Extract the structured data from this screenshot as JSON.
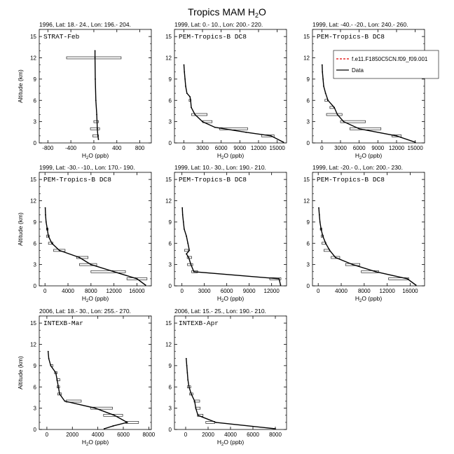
{
  "figure": {
    "title_main": "Tropics MAM H",
    "title_sub": "2",
    "title_end": "O"
  },
  "chart_data": [
    {
      "type": "line",
      "header": "1996, Lat: 18.- 24., Lon: 196.- 204.",
      "label": "STRAT-Feb",
      "xlabel": "H2O (ppb)",
      "ylabel": "Altitude (km)",
      "xlim": [
        -950,
        1000
      ],
      "ylim": [
        0,
        16
      ],
      "xticks": [
        "-800",
        "-400",
        "0",
        "400",
        "800"
      ],
      "xtick_values": [
        -800,
        -400,
        0,
        400,
        800
      ],
      "yticks": [
        "0",
        "3",
        "6",
        "9",
        "12",
        "15"
      ],
      "ytick_values": [
        0,
        3,
        6,
        9,
        12,
        15
      ],
      "data": [
        [
          20,
          13
        ],
        [
          20,
          12
        ],
        [
          25,
          9
        ],
        [
          35,
          6
        ],
        [
          50,
          4
        ],
        [
          60,
          2
        ],
        [
          70,
          1
        ],
        [
          80,
          0.5
        ]
      ],
      "boxes": [
        [
          0,
          12,
          950
        ],
        [
          20,
          2,
          160
        ],
        [
          30,
          1,
          100
        ],
        [
          40,
          3,
          80
        ]
      ]
    },
    {
      "type": "line",
      "header": "1999, Lat: 0.- 10., Lon: 200.- 220.",
      "label": "PEM-Tropics-B DC8",
      "xlabel": "H2O (ppb)",
      "ylabel": "Altitude (km)",
      "xlim": [
        -1500,
        16500
      ],
      "ylim": [
        0,
        16
      ],
      "xticks": [
        "0",
        "3000",
        "6000",
        "9000",
        "12000",
        "15000"
      ],
      "xtick_values": [
        0,
        3000,
        6000,
        9000,
        12000,
        15000
      ],
      "yticks": [
        "0",
        "3",
        "6",
        "9",
        "12",
        "15"
      ],
      "ytick_values": [
        0,
        3,
        6,
        9,
        12,
        15
      ],
      "data": [
        [
          20,
          11
        ],
        [
          100,
          10
        ],
        [
          200,
          9
        ],
        [
          300,
          8
        ],
        [
          500,
          7
        ],
        [
          1000,
          6.5
        ],
        [
          1100,
          6
        ],
        [
          1200,
          5
        ],
        [
          1800,
          4
        ],
        [
          3000,
          3
        ],
        [
          5000,
          2.2
        ],
        [
          10000,
          1.5
        ],
        [
          14000,
          1
        ],
        [
          16000,
          0.1
        ]
      ],
      "boxes": [
        [
          2500,
          4,
          2500
        ],
        [
          3800,
          3,
          1500
        ],
        [
          8000,
          2,
          4500
        ],
        [
          13500,
          1,
          2000
        ],
        [
          1000,
          6,
          300
        ]
      ]
    },
    {
      "type": "line",
      "header": "1999, Lat: -40.- -20., Lon: 240.- 260.",
      "label": "PEM-Tropics-B DC8",
      "xlabel": "H2O (ppb)",
      "ylabel": "Altitude (km)",
      "xlim": [
        -1500,
        16500
      ],
      "ylim": [
        0,
        16
      ],
      "xticks": [
        "0",
        "3000",
        "6000",
        "9000",
        "12000",
        "15000"
      ],
      "xtick_values": [
        0,
        3000,
        6000,
        9000,
        12000,
        15000
      ],
      "yticks": [
        "0",
        "3",
        "6",
        "9",
        "12",
        "15"
      ],
      "ytick_values": [
        0,
        3,
        6,
        9,
        12,
        15
      ],
      "data": [
        [
          50,
          11
        ],
        [
          100,
          10
        ],
        [
          200,
          9
        ],
        [
          300,
          8
        ],
        [
          600,
          7
        ],
        [
          1000,
          6
        ],
        [
          2000,
          5
        ],
        [
          2500,
          4
        ],
        [
          3500,
          3
        ],
        [
          6000,
          2
        ],
        [
          12000,
          1
        ],
        [
          15000,
          0.1
        ]
      ],
      "boxes": [
        [
          2000,
          4,
          2500
        ],
        [
          5000,
          3,
          4000
        ],
        [
          7000,
          2,
          5000
        ],
        [
          12000,
          1,
          1500
        ],
        [
          700,
          6,
          400
        ],
        [
          1600,
          5,
          600
        ]
      ]
    },
    {
      "type": "line",
      "header": "1999, Lat: -30.- -10., Lon: 170.- 190.",
      "label": "PEM-Tropics-B DC8",
      "xlabel": "H2O (ppb)",
      "ylabel": "Altitude (km)",
      "xlim": [
        -1000,
        18500
      ],
      "ylim": [
        0,
        16
      ],
      "xticks": [
        "0",
        "4000",
        "8000",
        "12000",
        "16000"
      ],
      "xtick_values": [
        0,
        4000,
        8000,
        12000,
        16000
      ],
      "yticks": [
        "0",
        "3",
        "6",
        "9",
        "12",
        "15"
      ],
      "ytick_values": [
        0,
        3,
        6,
        9,
        12,
        15
      ],
      "data": [
        [
          50,
          11
        ],
        [
          100,
          10
        ],
        [
          200,
          9
        ],
        [
          400,
          8
        ],
        [
          600,
          7
        ],
        [
          1200,
          6
        ],
        [
          2500,
          5
        ],
        [
          6000,
          4
        ],
        [
          8000,
          3
        ],
        [
          12000,
          2
        ],
        [
          16000,
          1
        ],
        [
          17500,
          0.1
        ]
      ],
      "boxes": [
        [
          2500,
          5,
          2000
        ],
        [
          6500,
          4,
          2000
        ],
        [
          7500,
          3,
          3000
        ],
        [
          11000,
          2,
          6000
        ],
        [
          16000,
          1,
          3500
        ],
        [
          1000,
          6,
          800
        ],
        [
          500,
          7,
          500
        ],
        [
          400,
          8,
          300
        ]
      ]
    },
    {
      "type": "line",
      "header": "1999, Lat: 10.- 30., Lon: 190.- 210.",
      "label": "PEM-Tropics-B DC8",
      "xlabel": "H2O (ppb)",
      "ylabel": "Altitude (km)",
      "xlim": [
        -1000,
        14000
      ],
      "ylim": [
        0,
        16
      ],
      "xticks": [
        "0",
        "3000",
        "6000",
        "9000",
        "12000"
      ],
      "xtick_values": [
        0,
        3000,
        6000,
        9000,
        12000
      ],
      "yticks": [
        "0",
        "3",
        "6",
        "9",
        "12",
        "15"
      ],
      "ytick_values": [
        0,
        3,
        6,
        9,
        12,
        15
      ],
      "data": [
        [
          50,
          11
        ],
        [
          100,
          10
        ],
        [
          200,
          9
        ],
        [
          300,
          8
        ],
        [
          600,
          7
        ],
        [
          800,
          6
        ],
        [
          1000,
          5
        ],
        [
          600,
          4.5
        ],
        [
          900,
          4
        ],
        [
          1200,
          3
        ],
        [
          1600,
          2
        ],
        [
          13000,
          1
        ],
        [
          13200,
          0.1
        ]
      ],
      "boxes": [
        [
          12500,
          1,
          1500
        ],
        [
          1700,
          2,
          800
        ],
        [
          1100,
          3,
          700
        ],
        [
          1000,
          4,
          600
        ],
        [
          600,
          5,
          500
        ]
      ]
    },
    {
      "type": "line",
      "header": "1999, Lat: -20.- 0., Lon: 200.- 230.",
      "label": "PEM-Tropics-B DC8",
      "xlabel": "H2O (ppb)",
      "ylabel": "Altitude (km)",
      "xlim": [
        -1000,
        18500
      ],
      "ylim": [
        0,
        16
      ],
      "xticks": [
        "0",
        "4000",
        "8000",
        "12000",
        "16000"
      ],
      "xtick_values": [
        0,
        4000,
        8000,
        12000,
        16000
      ],
      "yticks": [
        "0",
        "3",
        "6",
        "9",
        "12",
        "15"
      ],
      "ytick_values": [
        0,
        3,
        6,
        9,
        12,
        15
      ],
      "data": [
        [
          100,
          11
        ],
        [
          200,
          10
        ],
        [
          300,
          9
        ],
        [
          500,
          8
        ],
        [
          800,
          7
        ],
        [
          1300,
          6
        ],
        [
          2000,
          5
        ],
        [
          3000,
          4
        ],
        [
          6000,
          3
        ],
        [
          10000,
          2
        ],
        [
          15500,
          1
        ],
        [
          17000,
          0.1
        ]
      ],
      "boxes": [
        [
          14000,
          1,
          3500
        ],
        [
          9000,
          2,
          3000
        ],
        [
          6000,
          3,
          2500
        ],
        [
          3000,
          4,
          1500
        ],
        [
          1500,
          5,
          1000
        ],
        [
          1000,
          6,
          700
        ],
        [
          700,
          7,
          400
        ],
        [
          500,
          8,
          300
        ]
      ]
    },
    {
      "type": "line",
      "header": "2006, Lat: 18.- 30., Lon: 255.- 270.",
      "label": "INTEXB-Mar",
      "xlabel": "H2O (ppb)",
      "ylabel": "Altitude (km)",
      "xlim": [
        -600,
        8200
      ],
      "ylim": [
        0,
        16
      ],
      "xticks": [
        "0",
        "2000",
        "4000",
        "6000",
        "8000"
      ],
      "xtick_values": [
        0,
        2000,
        4000,
        6000,
        8000
      ],
      "yticks": [
        "0",
        "3",
        "6",
        "9",
        "12",
        "15"
      ],
      "ytick_values": [
        0,
        3,
        6,
        9,
        12,
        15
      ],
      "data": [
        [
          100,
          11
        ],
        [
          150,
          10
        ],
        [
          300,
          9
        ],
        [
          700,
          8
        ],
        [
          800,
          7
        ],
        [
          900,
          6
        ],
        [
          1000,
          5
        ],
        [
          1400,
          4
        ],
        [
          3800,
          3
        ],
        [
          5300,
          2
        ],
        [
          6300,
          1
        ],
        [
          5200,
          0.5
        ],
        [
          4500,
          0.1
        ]
      ],
      "boxes": [
        [
          6700,
          1,
          1000
        ],
        [
          5200,
          2,
          1500
        ],
        [
          4300,
          3,
          1700
        ],
        [
          2100,
          4,
          1200
        ],
        [
          1000,
          5,
          300
        ],
        [
          900,
          6,
          200
        ],
        [
          900,
          7,
          250
        ],
        [
          700,
          8,
          200
        ],
        [
          400,
          9,
          150
        ]
      ]
    },
    {
      "type": "line",
      "header": "2006, Lat: 15.- 25., Lon: 190.- 210.",
      "label": "INTEXB-Apr",
      "xlabel": "H2O (ppb)",
      "ylabel": "Altitude (km)",
      "xlim": [
        -1000,
        9000
      ],
      "ylim": [
        0,
        16
      ],
      "xticks": [
        "0",
        "2000",
        "4000",
        "6000",
        "8000"
      ],
      "xtick_values": [
        0,
        2000,
        4000,
        6000,
        8000
      ],
      "yticks": [
        "0",
        "3",
        "6",
        "9",
        "12",
        "15"
      ],
      "ytick_values": [
        0,
        3,
        6,
        9,
        12,
        15
      ],
      "data": [
        [
          50,
          10
        ],
        [
          100,
          9
        ],
        [
          150,
          8
        ],
        [
          200,
          7
        ],
        [
          300,
          6
        ],
        [
          500,
          5
        ],
        [
          800,
          4
        ],
        [
          900,
          3
        ],
        [
          1100,
          2
        ],
        [
          2700,
          1
        ],
        [
          8000,
          0.1
        ]
      ],
      "boxes": [
        [
          2200,
          1,
          800
        ],
        [
          1300,
          2,
          500
        ],
        [
          1100,
          3,
          400
        ],
        [
          1000,
          4,
          500
        ],
        [
          500,
          5,
          300
        ],
        [
          300,
          6,
          300
        ]
      ]
    }
  ],
  "legend": {
    "entries": [
      {
        "label": "f.e11.F1850C5CN.f09_f09.001",
        "color": "#e00000",
        "dash": true
      },
      {
        "label": "Data",
        "color": "#000000",
        "dash": false
      }
    ]
  }
}
